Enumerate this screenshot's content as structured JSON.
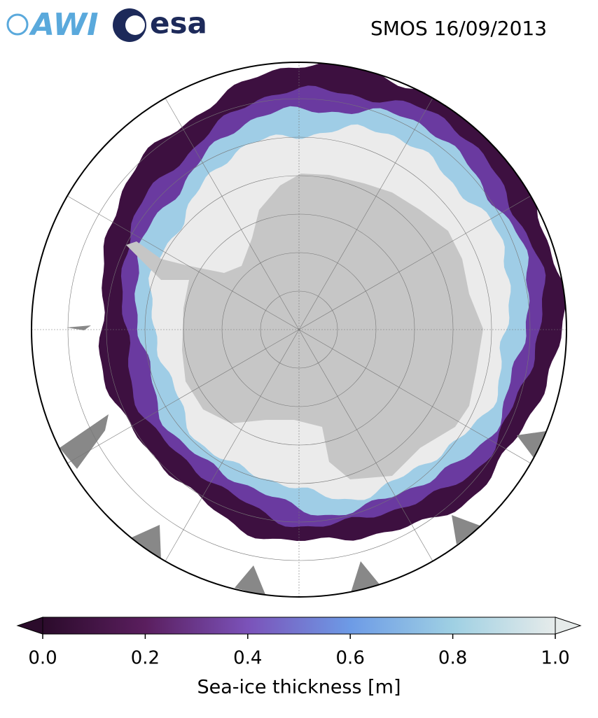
{
  "header": {
    "logos": [
      "AWI",
      "esa"
    ],
    "title": "SMOS 16/09/2013"
  },
  "colorbar": {
    "label": "Sea-ice thickness [m]",
    "lim": [
      0,
      1
    ],
    "ticks": [
      {
        "value": 0,
        "label": "0.0"
      },
      0.2,
      0.4,
      0.6,
      0.8,
      {
        "value": 1,
        "label": "1.0"
      }
    ],
    "colors": [
      "#2b0b2b",
      "#5a1e5e",
      "#7b52b9",
      "#6d9be6",
      "#9fd0e3",
      "#e6ebea"
    ]
  }
}
